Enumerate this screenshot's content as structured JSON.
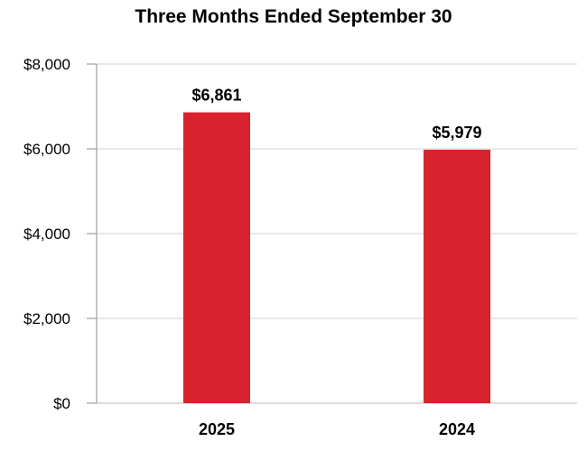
{
  "chart_data": {
    "type": "bar",
    "title": "Three Months Ended September 30",
    "categories": [
      "2025",
      "2024"
    ],
    "values": [
      6861,
      5979
    ],
    "value_labels": [
      "$6,861",
      "$5,979"
    ],
    "xlabel": "",
    "ylabel": "",
    "ylim": [
      0,
      8000
    ],
    "yticks": [
      {
        "value": 8000,
        "label": "$8,000"
      },
      {
        "value": 6000,
        "label": "$6,000"
      },
      {
        "value": 4000,
        "label": "$4,000"
      },
      {
        "value": 2000,
        "label": "$2,000"
      },
      {
        "value": 0,
        "label": "$0"
      }
    ],
    "grid": true,
    "legend": false,
    "colors": {
      "bar": "#D8222D",
      "gridline": "#D9D9D9",
      "zero_line": "#C6C6C6",
      "axis": "#A6A6A6",
      "text": "#000000",
      "background": "#FFFFFF"
    }
  }
}
